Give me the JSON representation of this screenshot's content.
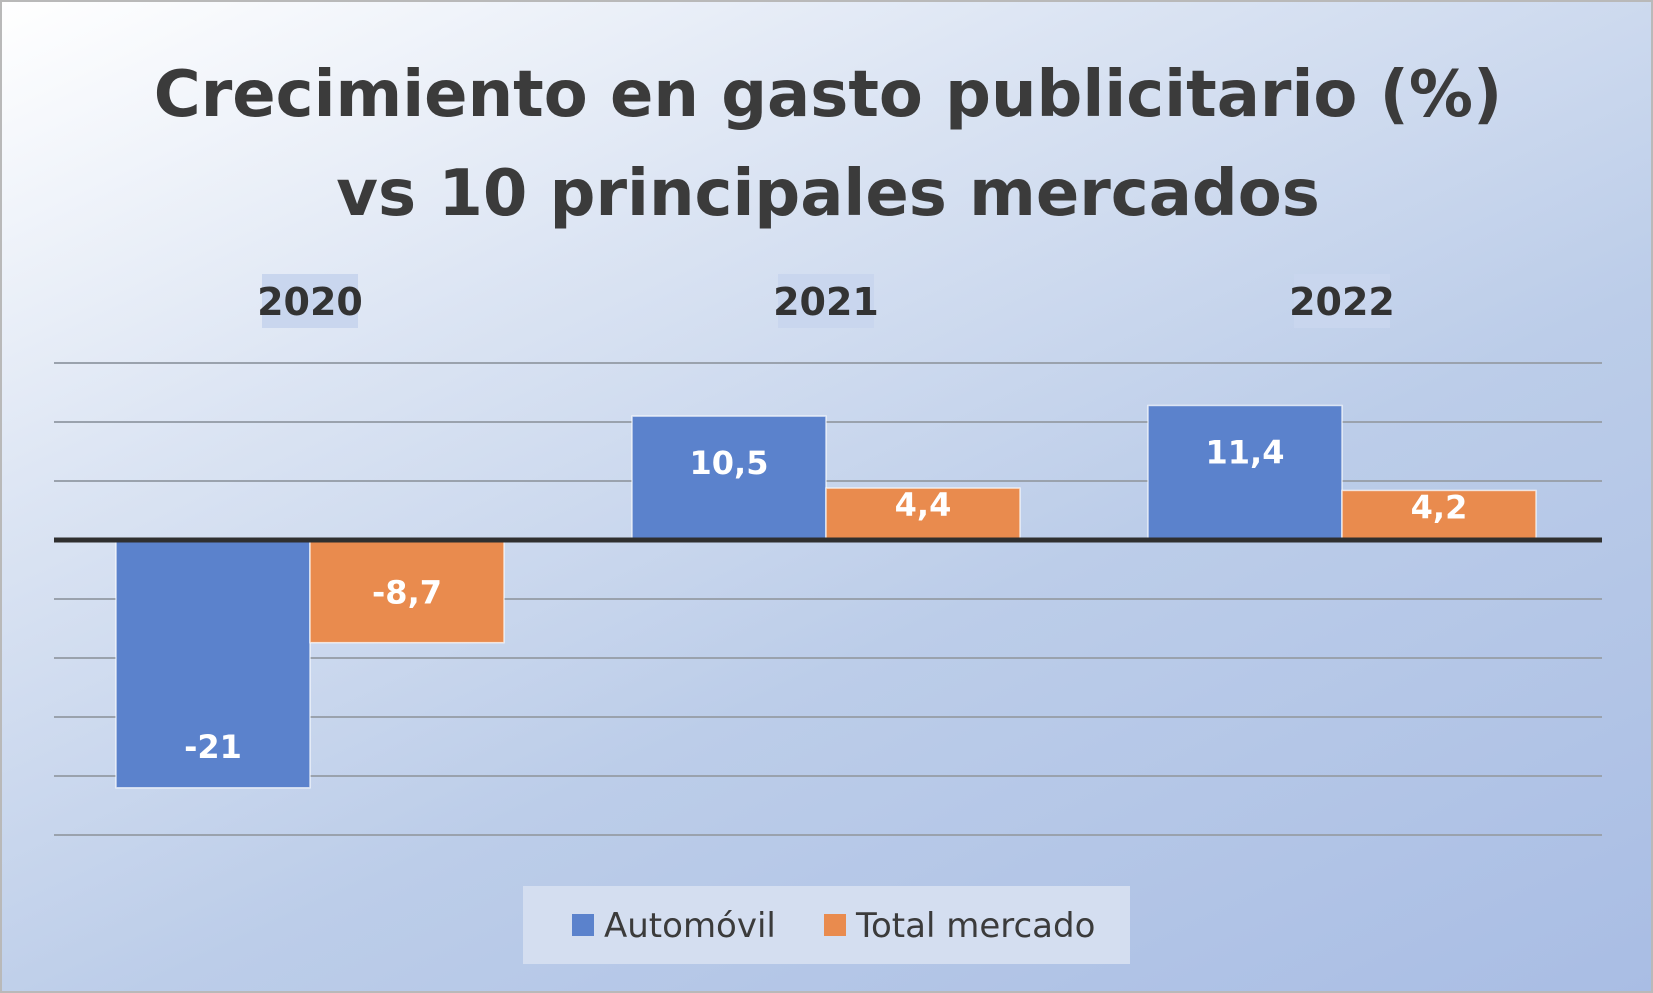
{
  "chart_data": {
    "type": "bar",
    "title": [
      "Crecimiento en gasto publicitario (%)",
      "vs 10 principales mercados"
    ],
    "categories": [
      "2020",
      "2021",
      "2022"
    ],
    "series": [
      {
        "name": "Automóvil",
        "values": [
          -21,
          10.5,
          11.4
        ],
        "labels": [
          "-21",
          "10,5",
          "11,4"
        ],
        "color": "#5b82cc"
      },
      {
        "name": "Total mercado",
        "values": [
          -8.7,
          4.4,
          4.2
        ],
        "labels": [
          "-8,7",
          "4,4",
          "4,2"
        ],
        "color": "#e98b4e"
      }
    ],
    "ylim": [
      -25,
      15
    ],
    "grid": true,
    "axis_labels_shown": false,
    "category_labels_position": "top",
    "legend_position": "bottom",
    "colors": {
      "gridline": "#9aa2ad",
      "zero_line": "#2f2f2f",
      "legend_bg": "#d4def0",
      "category_label_bg": "#c9d6ee"
    }
  }
}
